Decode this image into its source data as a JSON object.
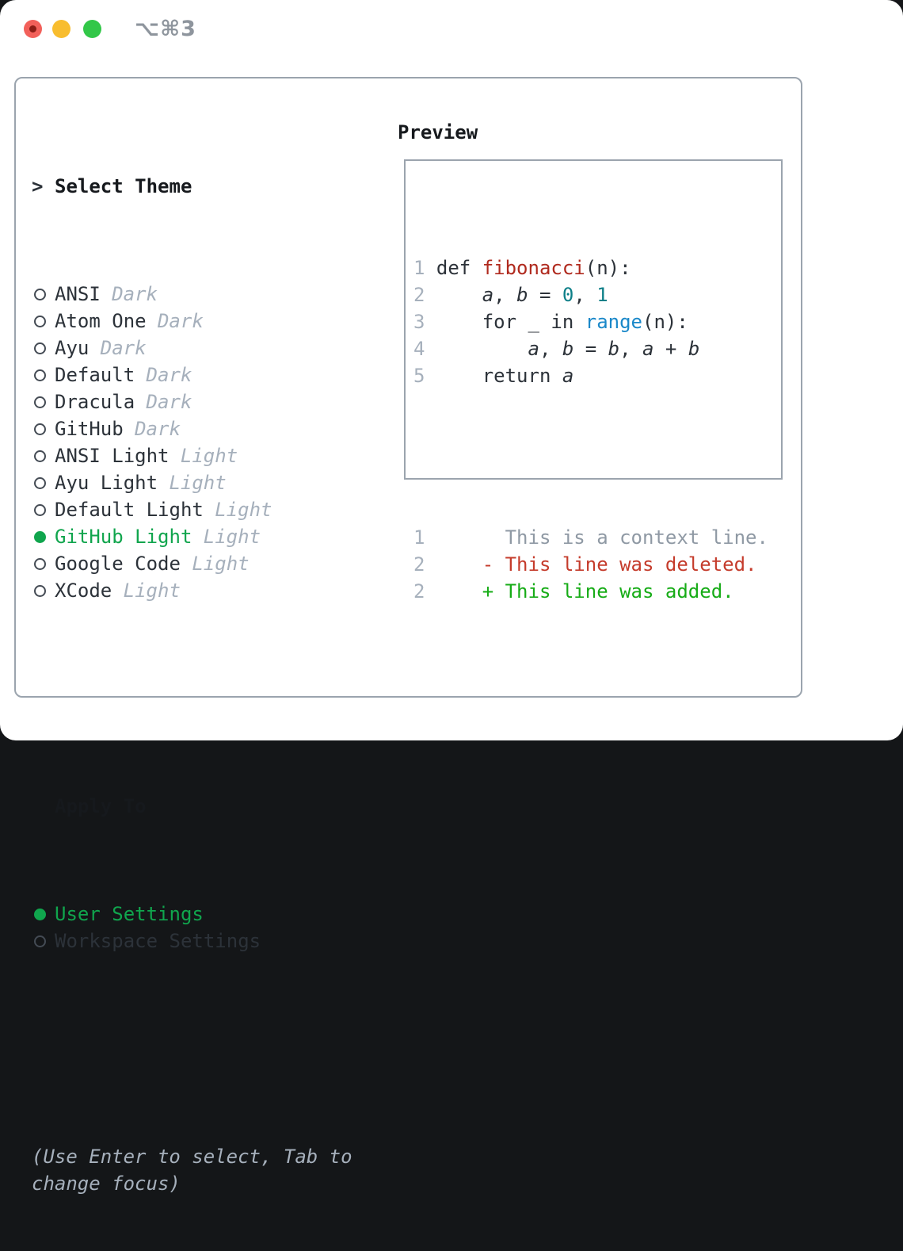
{
  "window": {
    "title": "⌥⌘3",
    "traffic_lights": [
      {
        "name": "close-button",
        "color": "#f2605a",
        "has_dot": true
      },
      {
        "name": "minimize-button",
        "color": "#f8bd2f",
        "has_dot": false
      },
      {
        "name": "zoom-button",
        "color": "#32c748",
        "has_dot": false
      }
    ]
  },
  "theme_picker": {
    "caret": ">",
    "header": "Select Theme",
    "themes": [
      {
        "name": "ANSI",
        "variant": "Dark",
        "selected": false
      },
      {
        "name": "Atom One",
        "variant": "Dark",
        "selected": false
      },
      {
        "name": "Ayu",
        "variant": "Dark",
        "selected": false
      },
      {
        "name": "Default",
        "variant": "Dark",
        "selected": false
      },
      {
        "name": "Dracula",
        "variant": "Dark",
        "selected": false
      },
      {
        "name": "GitHub",
        "variant": "Dark",
        "selected": false
      },
      {
        "name": "ANSI Light",
        "variant": "Light",
        "selected": false
      },
      {
        "name": "Ayu Light",
        "variant": "Light",
        "selected": false
      },
      {
        "name": "Default Light",
        "variant": "Light",
        "selected": false
      },
      {
        "name": "GitHub Light",
        "variant": "Light",
        "selected": true
      },
      {
        "name": "Google Code",
        "variant": "Light",
        "selected": false
      },
      {
        "name": "XCode",
        "variant": "Light",
        "selected": false
      }
    ],
    "apply_to": {
      "header": "Apply To",
      "options": [
        {
          "label": "User Settings",
          "selected": true
        },
        {
          "label": "Workspace Settings",
          "selected": false
        }
      ]
    },
    "hint": "(Use Enter to select, Tab to change focus)"
  },
  "preview": {
    "title": "Preview",
    "code_lines": [
      {
        "num": "1",
        "tokens": [
          {
            "t": "def ",
            "s": "plain"
          },
          {
            "t": "fibonacci",
            "s": "func"
          },
          {
            "t": "(n):",
            "s": "plain"
          }
        ]
      },
      {
        "num": "2",
        "tokens": [
          {
            "t": "    ",
            "s": "plain"
          },
          {
            "t": "a",
            "s": "var"
          },
          {
            "t": ", ",
            "s": "plain"
          },
          {
            "t": "b",
            "s": "var"
          },
          {
            "t": " = ",
            "s": "plain"
          },
          {
            "t": "0",
            "s": "num"
          },
          {
            "t": ", ",
            "s": "plain"
          },
          {
            "t": "1",
            "s": "num"
          }
        ]
      },
      {
        "num": "3",
        "tokens": [
          {
            "t": "    for _ in ",
            "s": "plain"
          },
          {
            "t": "range",
            "s": "builtin"
          },
          {
            "t": "(n):",
            "s": "plain"
          }
        ]
      },
      {
        "num": "4",
        "tokens": [
          {
            "t": "        ",
            "s": "plain"
          },
          {
            "t": "a",
            "s": "var"
          },
          {
            "t": ", ",
            "s": "plain"
          },
          {
            "t": "b",
            "s": "var"
          },
          {
            "t": " = ",
            "s": "plain"
          },
          {
            "t": "b",
            "s": "var"
          },
          {
            "t": ", ",
            "s": "plain"
          },
          {
            "t": "a",
            "s": "var"
          },
          {
            "t": " + ",
            "s": "plain"
          },
          {
            "t": "b",
            "s": "var"
          }
        ]
      },
      {
        "num": "5",
        "tokens": [
          {
            "t": "    return ",
            "s": "plain"
          },
          {
            "t": "a",
            "s": "var"
          }
        ]
      }
    ],
    "diff_lines": [
      {
        "num": "1",
        "marker": " ",
        "text": "This is a context line.",
        "kind": "context"
      },
      {
        "num": "2",
        "marker": "-",
        "text": "This line was deleted.",
        "kind": "deleted"
      },
      {
        "num": "2",
        "marker": "+",
        "text": "This line was added.",
        "kind": "added"
      }
    ]
  },
  "colors": {
    "text_dark": "#2c3239",
    "muted_gray": "#a6b0bc",
    "context_gray": "#8f99a4",
    "border_gray": "#9ba4ae",
    "selected_green": "#10a54d",
    "added_green": "#17ac17",
    "deleted_red": "#c53c2c",
    "function_red": "#b02a1e",
    "number_teal": "#0d7f88",
    "builtin_blue": "#1a88c9"
  }
}
